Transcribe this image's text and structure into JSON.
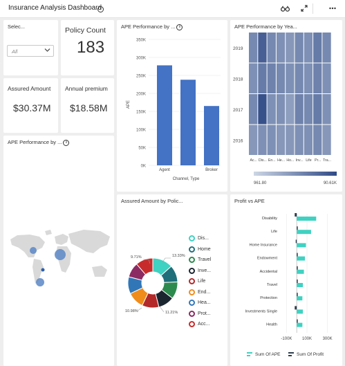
{
  "header": {
    "title": "Insurance Analysis Dashboard",
    "icons": [
      "info-icon",
      "binoculars-icon",
      "expand-icon",
      "more-icon"
    ]
  },
  "selector": {
    "title": "Selec...",
    "value": "All"
  },
  "policy_count": {
    "label": "Policy Count",
    "value": "183"
  },
  "assured_amount": {
    "label": "Assured Amount",
    "value": "$30.37M"
  },
  "annual_premium": {
    "label": "Annual premium",
    "value": "$18.58M"
  },
  "ape_channel": {
    "title": "APE Performance by ...",
    "ylabel": "APE",
    "xlabel": "Channel, Type",
    "yticks": [
      "0K",
      "50K",
      "100K",
      "150K",
      "200K",
      "250K",
      "300K",
      "350K"
    ],
    "categories": [
      "Agent",
      "Broker"
    ]
  },
  "ape_year": {
    "title": "APE Performance by Yea...",
    "years": [
      "2019",
      "2018",
      "2017",
      "2016"
    ],
    "columns": [
      "Ac...",
      "Dis...",
      "En...",
      "He...",
      "Ho...",
      "Inv...",
      "Life",
      "Pr...",
      "Tra..."
    ],
    "scale_min": "961.80",
    "scale_max": "90.61K"
  },
  "ape_map": {
    "title": "APE Performance by ..."
  },
  "assured_policy": {
    "title": "Assured Amount by Polic...",
    "slice_labels": [
      "9.71%",
      "13.33%",
      "10.98%",
      "11.21%"
    ],
    "legend": [
      "Dis...",
      "Home",
      "Travel",
      "Inve...",
      "Life",
      "End...",
      "Hea...",
      "Prot...",
      "Acc..."
    ]
  },
  "profit_ape": {
    "title": "Profit vs APE",
    "categories": [
      "Disability",
      "Life",
      "Home Insurance",
      "Endowment",
      "Accidental",
      "Travel",
      "Protection",
      "Investments Single",
      "Health"
    ],
    "xticks": [
      "-100K",
      "100K",
      "300K"
    ],
    "legend_ape": "Sum Of APE",
    "legend_profit": "Sum Of Profit"
  },
  "colors": {
    "bar": "#4472c4",
    "heat_low": "#cdd6e4",
    "heat_high": "#2f4a86",
    "ape_bar": "#3fd1c1",
    "profit_bar": "#2d3d4d",
    "donut": [
      "#3fd1c1",
      "#1f6f7a",
      "#2d8a4e",
      "#1a2530",
      "#b32828",
      "#f08c1a",
      "#3177b8",
      "#8b2a63",
      "#c82b2b"
    ]
  },
  "chart_data": [
    {
      "type": "bar",
      "categories": [
        "Agent",
        "",
        "Broker"
      ],
      "values": [
        278000,
        238000,
        165000
      ],
      "xlabel": "Channel, Type",
      "ylabel": "APE",
      "ylim": [
        0,
        350000
      ],
      "grid": true
    },
    {
      "type": "heatmap",
      "rows": [
        "2019",
        "2018",
        "2017",
        "2016"
      ],
      "columns": [
        "Ac...",
        "Dis...",
        "En...",
        "He...",
        "Ho...",
        "Inv...",
        "Life",
        "Pr...",
        "Tra..."
      ],
      "values": [
        [
          0.55,
          0.85,
          0.55,
          0.5,
          0.45,
          0.55,
          0.5,
          0.65,
          0.55
        ],
        [
          0.5,
          0.65,
          0.6,
          0.55,
          0.5,
          0.55,
          0.5,
          0.6,
          0.5
        ],
        [
          0.55,
          0.95,
          0.5,
          0.5,
          0.4,
          0.6,
          0.55,
          0.65,
          0.5
        ],
        [
          0.45,
          0.5,
          0.5,
          0.45,
          0.45,
          0.5,
          0.5,
          0.55,
          0.45
        ]
      ],
      "scale": [
        961.8,
        90610
      ]
    },
    {
      "type": "pie",
      "labels": [
        "Dis...",
        "Home",
        "Travel",
        "Inve...",
        "Life",
        "End...",
        "Hea...",
        "Prot...",
        "Acc..."
      ],
      "values": [
        13.33,
        11.0,
        11.21,
        10.5,
        11.0,
        10.98,
        11.0,
        9.71,
        11.27
      ],
      "donut": true
    },
    {
      "type": "bar",
      "orientation": "horizontal",
      "categories": [
        "Disability",
        "Life",
        "Home Insurance",
        "Endowment",
        "Accidental",
        "Travel",
        "Protection",
        "Investments Single",
        "Health"
      ],
      "series": [
        {
          "name": "Sum Of APE",
          "values": [
            190000,
            140000,
            90000,
            80000,
            70000,
            60000,
            55000,
            60000,
            55000
          ]
        },
        {
          "name": "Sum Of Profit",
          "values": [
            -20000,
            10000,
            -10000,
            5000,
            5000,
            5000,
            5000,
            -20000,
            5000
          ]
        }
      ],
      "xlim": [
        -150000,
        350000
      ],
      "xticks": [
        -100000,
        100000,
        300000
      ]
    }
  ]
}
